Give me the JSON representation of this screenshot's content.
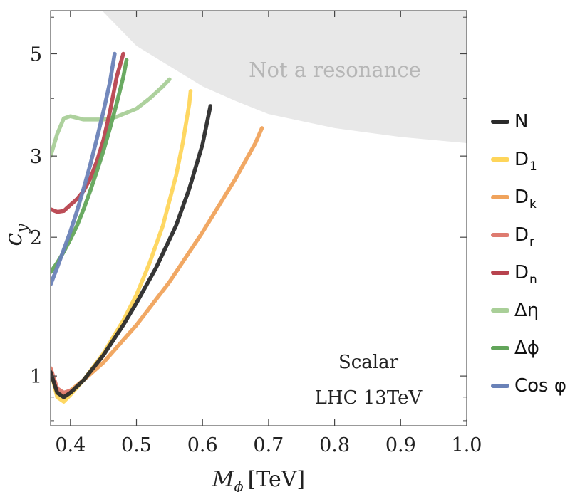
{
  "chart_data": {
    "type": "line",
    "title": "",
    "xlabel_main": "M",
    "xlabel_sub": "ϕ",
    "xlabel_unit": "[TeV]",
    "ylabel_main": "c",
    "ylabel_sub": "y",
    "xlim": [
      0.37,
      1.0
    ],
    "ylim": [
      0.78,
      6.2
    ],
    "y_scale": "log",
    "x_ticks": [
      0.4,
      0.5,
      0.6,
      0.7,
      0.8,
      0.9,
      1.0
    ],
    "x_tick_labels": [
      "0.4",
      "0.5",
      "0.6",
      "0.7",
      "0.8",
      "0.9",
      "1.0"
    ],
    "y_ticks": [
      1,
      2,
      3,
      5
    ],
    "y_tick_labels": [
      "1",
      "2",
      "3",
      "5"
    ],
    "grid": false,
    "legend_placement": "right",
    "annotations": {
      "line1": "Scalar",
      "line2": "LHC 13TeV"
    },
    "excluded_region": {
      "label": "Not a resonance",
      "color": "#e8e8e8",
      "boundary": [
        {
          "x": 0.448,
          "y": 6.2
        },
        {
          "x": 0.5,
          "y": 5.2
        },
        {
          "x": 0.55,
          "y": 4.7
        },
        {
          "x": 0.6,
          "y": 4.25
        },
        {
          "x": 0.65,
          "y": 3.95
        },
        {
          "x": 0.7,
          "y": 3.7
        },
        {
          "x": 0.8,
          "y": 3.45
        },
        {
          "x": 0.9,
          "y": 3.3
        },
        {
          "x": 1.0,
          "y": 3.2
        }
      ]
    },
    "series": [
      {
        "name": "Δη",
        "legend_label": "Δη",
        "color": "#a9cf98",
        "points": [
          {
            "x": 0.37,
            "y": 3.0
          },
          {
            "x": 0.38,
            "y": 3.35
          },
          {
            "x": 0.39,
            "y": 3.62
          },
          {
            "x": 0.4,
            "y": 3.66
          },
          {
            "x": 0.42,
            "y": 3.6
          },
          {
            "x": 0.45,
            "y": 3.6
          },
          {
            "x": 0.47,
            "y": 3.65
          },
          {
            "x": 0.5,
            "y": 3.8
          },
          {
            "x": 0.52,
            "y": 4.0
          },
          {
            "x": 0.54,
            "y": 4.25
          },
          {
            "x": 0.55,
            "y": 4.4
          }
        ]
      },
      {
        "name": "Dn",
        "legend_label": "D",
        "legend_sub": "n",
        "color": "#b8434e",
        "points": [
          {
            "x": 0.37,
            "y": 2.3
          },
          {
            "x": 0.38,
            "y": 2.27
          },
          {
            "x": 0.39,
            "y": 2.28
          },
          {
            "x": 0.4,
            "y": 2.35
          },
          {
            "x": 0.41,
            "y": 2.42
          },
          {
            "x": 0.42,
            "y": 2.52
          },
          {
            "x": 0.43,
            "y": 2.68
          },
          {
            "x": 0.44,
            "y": 2.92
          },
          {
            "x": 0.45,
            "y": 3.25
          },
          {
            "x": 0.46,
            "y": 3.75
          },
          {
            "x": 0.47,
            "y": 4.45
          },
          {
            "x": 0.48,
            "y": 5.0
          }
        ]
      },
      {
        "name": "Δϕ",
        "legend_label": "Δϕ",
        "color": "#62a55a",
        "points": [
          {
            "x": 0.37,
            "y": 1.68
          },
          {
            "x": 0.38,
            "y": 1.76
          },
          {
            "x": 0.39,
            "y": 1.86
          },
          {
            "x": 0.4,
            "y": 1.98
          },
          {
            "x": 0.41,
            "y": 2.12
          },
          {
            "x": 0.42,
            "y": 2.3
          },
          {
            "x": 0.43,
            "y": 2.52
          },
          {
            "x": 0.44,
            "y": 2.78
          },
          {
            "x": 0.45,
            "y": 3.08
          },
          {
            "x": 0.46,
            "y": 3.45
          },
          {
            "x": 0.47,
            "y": 3.9
          },
          {
            "x": 0.48,
            "y": 4.45
          },
          {
            "x": 0.485,
            "y": 4.85
          }
        ]
      },
      {
        "name": "Cos φ",
        "legend_label": "Cos φ",
        "color": "#6a82b8",
        "points": [
          {
            "x": 0.37,
            "y": 1.58
          },
          {
            "x": 0.38,
            "y": 1.72
          },
          {
            "x": 0.39,
            "y": 1.88
          },
          {
            "x": 0.4,
            "y": 2.06
          },
          {
            "x": 0.41,
            "y": 2.28
          },
          {
            "x": 0.42,
            "y": 2.55
          },
          {
            "x": 0.43,
            "y": 2.87
          },
          {
            "x": 0.44,
            "y": 3.27
          },
          {
            "x": 0.45,
            "y": 3.75
          },
          {
            "x": 0.46,
            "y": 4.35
          },
          {
            "x": 0.467,
            "y": 5.0
          }
        ]
      },
      {
        "name": "Dk",
        "legend_label": "D",
        "legend_sub": "k",
        "color": "#f0a35c",
        "points": [
          {
            "x": 0.37,
            "y": 1.04
          },
          {
            "x": 0.38,
            "y": 0.93
          },
          {
            "x": 0.39,
            "y": 0.91
          },
          {
            "x": 0.4,
            "y": 0.93
          },
          {
            "x": 0.42,
            "y": 0.98
          },
          {
            "x": 0.45,
            "y": 1.07
          },
          {
            "x": 0.5,
            "y": 1.29
          },
          {
            "x": 0.55,
            "y": 1.6
          },
          {
            "x": 0.6,
            "y": 2.05
          },
          {
            "x": 0.65,
            "y": 2.68
          },
          {
            "x": 0.68,
            "y": 3.2
          },
          {
            "x": 0.69,
            "y": 3.45
          }
        ]
      },
      {
        "name": "D1",
        "legend_label": "D",
        "legend_sub": "1",
        "color": "#fed55a",
        "points": [
          {
            "x": 0.37,
            "y": 1.03
          },
          {
            "x": 0.38,
            "y": 0.9
          },
          {
            "x": 0.39,
            "y": 0.88
          },
          {
            "x": 0.4,
            "y": 0.91
          },
          {
            "x": 0.42,
            "y": 0.98
          },
          {
            "x": 0.45,
            "y": 1.12
          },
          {
            "x": 0.48,
            "y": 1.32
          },
          {
            "x": 0.5,
            "y": 1.5
          },
          {
            "x": 0.52,
            "y": 1.76
          },
          {
            "x": 0.54,
            "y": 2.12
          },
          {
            "x": 0.56,
            "y": 2.72
          },
          {
            "x": 0.57,
            "y": 3.2
          },
          {
            "x": 0.58,
            "y": 3.9
          },
          {
            "x": 0.582,
            "y": 4.15
          }
        ]
      },
      {
        "name": "Dr",
        "legend_label": "D",
        "legend_sub": "r",
        "color": "#de7b70",
        "points": [
          {
            "x": 0.37,
            "y": 1.04
          },
          {
            "x": 0.38,
            "y": 0.94
          },
          {
            "x": 0.39,
            "y": 0.92
          },
          {
            "x": 0.4,
            "y": 0.93
          }
        ]
      },
      {
        "name": "N",
        "legend_label": "N",
        "color": "#2b2b2b",
        "points": [
          {
            "x": 0.37,
            "y": 1.02
          },
          {
            "x": 0.38,
            "y": 0.92
          },
          {
            "x": 0.39,
            "y": 0.9
          },
          {
            "x": 0.4,
            "y": 0.92
          },
          {
            "x": 0.42,
            "y": 0.98
          },
          {
            "x": 0.45,
            "y": 1.11
          },
          {
            "x": 0.48,
            "y": 1.29
          },
          {
            "x": 0.5,
            "y": 1.44
          },
          {
            "x": 0.53,
            "y": 1.72
          },
          {
            "x": 0.56,
            "y": 2.12
          },
          {
            "x": 0.58,
            "y": 2.55
          },
          {
            "x": 0.6,
            "y": 3.18
          },
          {
            "x": 0.612,
            "y": 3.85
          }
        ]
      }
    ],
    "legend_order": [
      "N",
      "D1",
      "Dk",
      "Dr",
      "Dn",
      "Δη",
      "Δϕ",
      "Cos φ"
    ]
  }
}
